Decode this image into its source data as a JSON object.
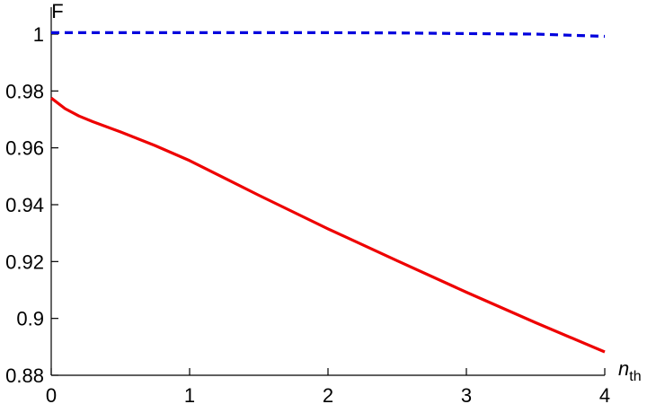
{
  "chart_data": {
    "type": "line",
    "ylabel": "F",
    "xlabel": {
      "main": "n",
      "sub": "th"
    },
    "xlim": [
      0,
      4
    ],
    "ylim": [
      0.88,
      1.005
    ],
    "xticks": [
      0,
      1,
      2,
      3,
      4
    ],
    "xtick_labels": [
      "0",
      "1",
      "2",
      "3",
      "4"
    ],
    "yticks": [
      0.88,
      0.9,
      0.92,
      0.94,
      0.96,
      0.98,
      1
    ],
    "ytick_labels": [
      "0.88",
      "0.9",
      "0.92",
      "0.94",
      "0.96",
      "0.98",
      "1"
    ],
    "grid": false,
    "series": [
      {
        "color": "#0000dd",
        "style": "dashed",
        "x": [
          0,
          0.5,
          1,
          1.5,
          2,
          2.5,
          3,
          3.5,
          4
        ],
        "y": [
          1.0005,
          1.0005,
          1.0005,
          1.0005,
          1.0005,
          1.0004,
          1.0002,
          1.0,
          0.9992
        ]
      },
      {
        "color": "#ee0000",
        "style": "solid",
        "x": [
          0,
          0.1,
          0.2,
          0.3,
          0.5,
          0.75,
          1,
          1.5,
          2,
          2.5,
          3,
          3.5,
          4
        ],
        "y": [
          0.9775,
          0.9738,
          0.9712,
          0.9692,
          0.9656,
          0.9608,
          0.9555,
          0.9433,
          0.9315,
          0.9203,
          0.9092,
          0.8985,
          0.8882
        ]
      }
    ]
  }
}
